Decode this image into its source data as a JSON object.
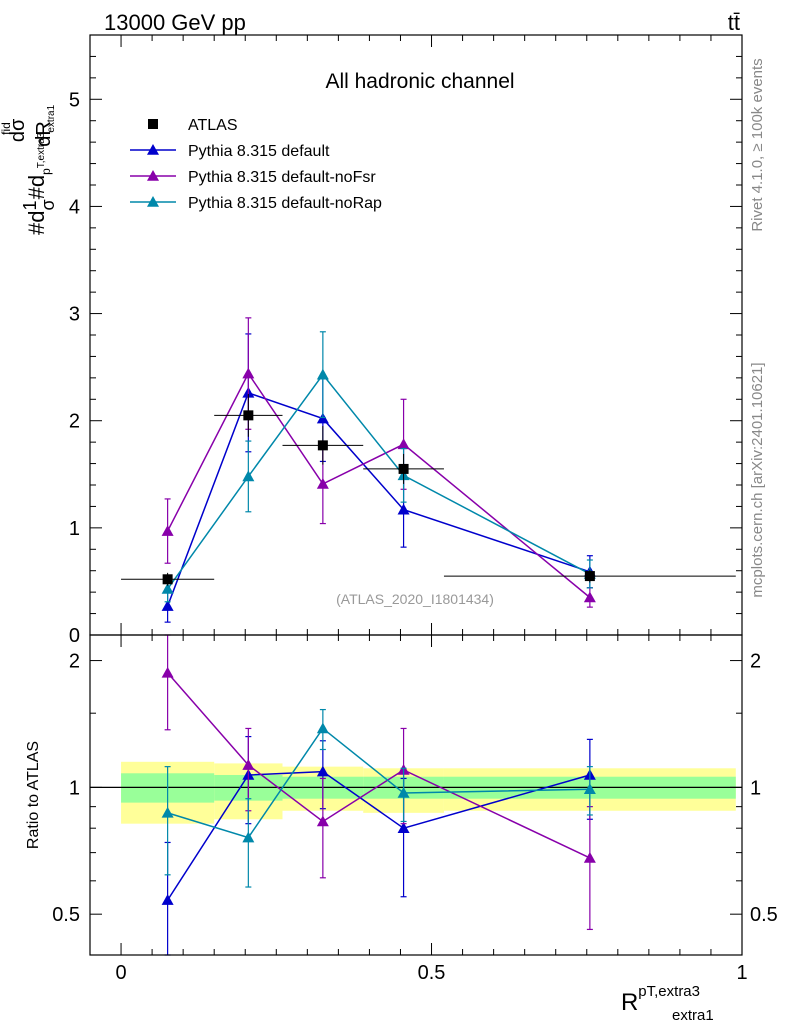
{
  "header": {
    "energy_label": "13000 GeV pp",
    "process_label": "tt̄"
  },
  "side_labels": {
    "rivet": "Rivet 4.1.0, ≥ 100k events",
    "source": "mcplots.cern.ch [arXiv:2401.10621]"
  },
  "chart_data": [
    {
      "type": "line",
      "title": "All hadronic channel",
      "watermark": "(ATLAS_2020_I1801434)",
      "ylabel": {
        "prefix": "#d",
        "frac1_num": "1",
        "frac1_den": "σ",
        "mid": "#d",
        "sup": "fid",
        "sub_a": "p",
        "sub_b": "T,extra3",
        "sub_c": "extra1",
        "frac2_num": "dσ",
        "frac2_den": "dR"
      },
      "xlim": [
        -0.05,
        1.0
      ],
      "ylim": [
        0,
        5.6
      ],
      "yticks": [
        0,
        1,
        2,
        3,
        4,
        5
      ],
      "yticklabels": [
        "0",
        "1",
        "2",
        "3",
        "4",
        "5"
      ],
      "legend_position": "top-left",
      "data": {
        "name": "ATLAS",
        "color": "#000000",
        "x": [
          0.075,
          0.205,
          0.325,
          0.455,
          0.755
        ],
        "y": [
          0.52,
          2.05,
          1.77,
          1.55,
          0.55
        ],
        "xerr_lo": [
          0.075,
          0.055,
          0.065,
          0.065,
          0.235
        ],
        "xerr_hi": [
          0.075,
          0.055,
          0.065,
          0.065,
          0.235
        ],
        "yerr": [
          0.06,
          0.2,
          0.18,
          0.14,
          0.06
        ]
      },
      "series": [
        {
          "name": "Pythia 8.315 default",
          "color": "#0000cc",
          "x": [
            0.075,
            0.205,
            0.325,
            0.455,
            0.755
          ],
          "y": [
            0.27,
            2.26,
            2.02,
            1.17,
            0.59
          ],
          "yerr": [
            0.15,
            0.55,
            0.4,
            0.35,
            0.15
          ]
        },
        {
          "name": "Pythia 8.315 default-noFsr",
          "color": "#8800aa",
          "x": [
            0.075,
            0.205,
            0.325,
            0.455,
            0.755
          ],
          "y": [
            0.97,
            2.44,
            1.41,
            1.78,
            0.35
          ],
          "yerr": [
            0.3,
            0.52,
            0.37,
            0.42,
            0.09
          ]
        },
        {
          "name": "Pythia 8.315 default-noRap",
          "color": "#0088aa",
          "x": [
            0.075,
            0.205,
            0.325,
            0.455,
            0.755
          ],
          "y": [
            0.43,
            1.48,
            2.43,
            1.49,
            0.57
          ],
          "yerr": [
            0.12,
            0.33,
            0.4,
            0.25,
            0.13
          ]
        }
      ]
    },
    {
      "type": "line",
      "ylabel": "Ratio to ATLAS",
      "xlabel": {
        "base": "R",
        "sup": "pT,extra3",
        "sub": "extra1"
      },
      "xlim": [
        -0.05,
        1.0
      ],
      "ylim": [
        0.4,
        2.3
      ],
      "yscale": "log",
      "xticks": [
        0,
        0.5,
        1
      ],
      "xticklabels": [
        "0",
        "0.5",
        "1"
      ],
      "yticks": [
        0.5,
        1,
        2
      ],
      "yticklabels": [
        "0.5",
        "1",
        "2"
      ],
      "bands": {
        "edges": [
          0.0,
          0.15,
          0.26,
          0.39,
          0.52,
          0.99
        ],
        "inner_lo": [
          0.92,
          0.93,
          0.94,
          0.94,
          0.94
        ],
        "inner_hi": [
          1.08,
          1.07,
          1.06,
          1.06,
          1.06
        ],
        "outer_lo": [
          0.82,
          0.84,
          0.88,
          0.87,
          0.88
        ],
        "outer_hi": [
          1.15,
          1.14,
          1.12,
          1.11,
          1.11
        ],
        "inner_color": "#99ff99",
        "outer_color": "#ffff99"
      },
      "series": [
        {
          "name": "Pythia 8.315 default",
          "color": "#0000cc",
          "x": [
            0.075,
            0.205,
            0.325,
            0.455,
            0.755
          ],
          "y": [
            0.54,
            1.07,
            1.09,
            0.8,
            1.07
          ],
          "yerr": [
            0.2,
            0.25,
            0.2,
            0.25,
            0.23
          ]
        },
        {
          "name": "Pythia 8.315 default-noFsr",
          "color": "#8800aa",
          "x": [
            0.075,
            0.205,
            0.325,
            0.455,
            0.755
          ],
          "y": [
            1.87,
            1.13,
            0.83,
            1.1,
            0.68
          ],
          "yerr": [
            0.5,
            0.25,
            0.22,
            0.28,
            0.22
          ]
        },
        {
          "name": "Pythia 8.315 default-noRap",
          "color": "#0088aa",
          "x": [
            0.075,
            0.205,
            0.325,
            0.455,
            0.755
          ],
          "y": [
            0.87,
            0.76,
            1.38,
            0.97,
            0.99
          ],
          "yerr": [
            0.25,
            0.18,
            0.15,
            0.14,
            0.13
          ]
        }
      ]
    }
  ]
}
